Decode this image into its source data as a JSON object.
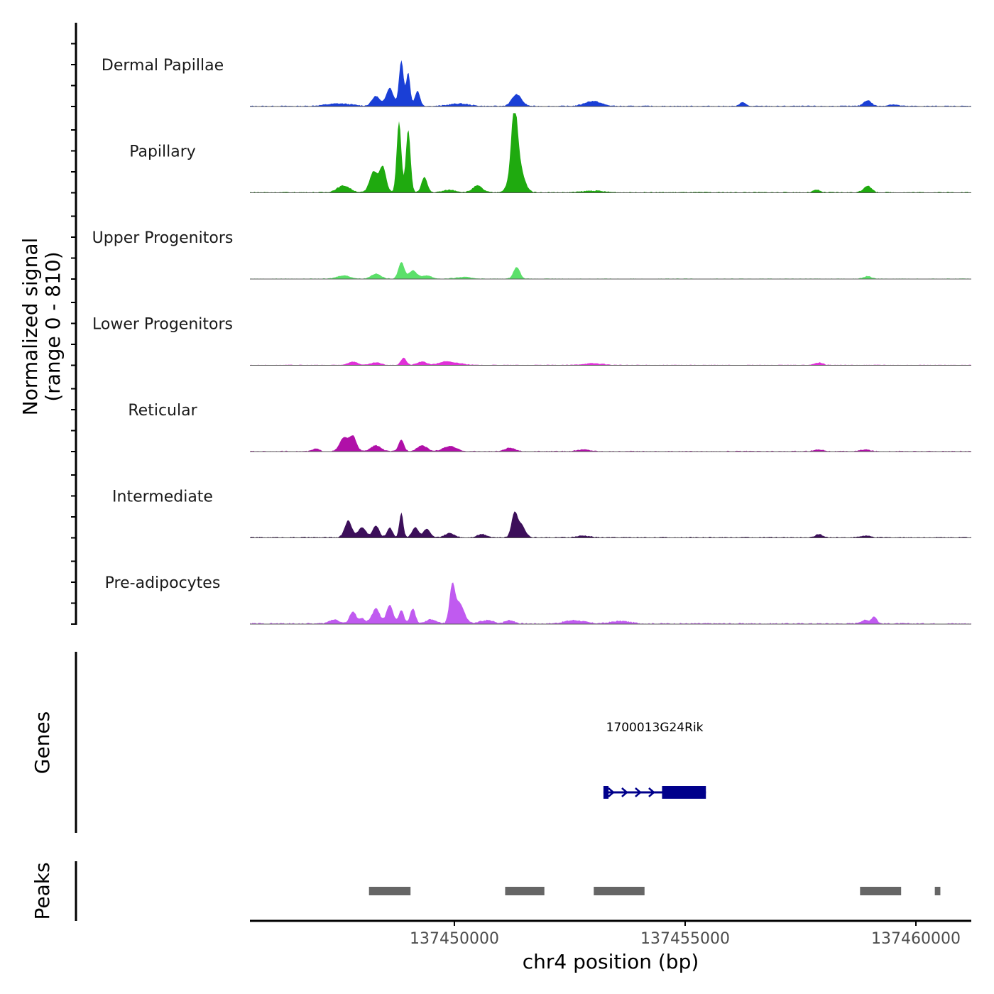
{
  "chart_data": {
    "type": "coverage-track",
    "region": {
      "chrom": "chr4",
      "start": 137445570,
      "end": 137461200
    },
    "y_title_line1": "Normalized signal",
    "y_title_line2": "(range 0 - 810)",
    "xlabel": "chr4 position (bp)",
    "x_ticks": [
      137450000,
      137455000,
      137460000
    ],
    "x_tick_labels": [
      "137450000",
      "137455000",
      "137460000"
    ],
    "tracks": [
      {
        "name": "Dermal Papillae",
        "color": "#1a3fd6",
        "peaks": [
          [
            137447500,
            0.03,
            400
          ],
          [
            137448300,
            0.12,
            120
          ],
          [
            137448600,
            0.22,
            110
          ],
          [
            137448850,
            0.55,
            70
          ],
          [
            137449000,
            0.4,
            60
          ],
          [
            137449200,
            0.18,
            80
          ],
          [
            137450100,
            0.03,
            300
          ],
          [
            137451350,
            0.14,
            150
          ],
          [
            137453000,
            0.06,
            250
          ],
          [
            137456250,
            0.05,
            80
          ],
          [
            137458950,
            0.07,
            120
          ],
          [
            137459500,
            0.02,
            150
          ]
        ],
        "noise": 0.012
      },
      {
        "name": "Papillary",
        "color": "#1faa0f",
        "peaks": [
          [
            137447600,
            0.08,
            200
          ],
          [
            137448250,
            0.25,
            120
          ],
          [
            137448450,
            0.3,
            100
          ],
          [
            137448800,
            0.85,
            70
          ],
          [
            137449000,
            0.75,
            70
          ],
          [
            137449350,
            0.18,
            90
          ],
          [
            137449900,
            0.03,
            200
          ],
          [
            137450500,
            0.08,
            150
          ],
          [
            137451300,
            0.7,
            90
          ],
          [
            137451350,
            0.4,
            180
          ],
          [
            137453000,
            0.02,
            300
          ],
          [
            137457850,
            0.03,
            100
          ],
          [
            137458950,
            0.08,
            120
          ]
        ],
        "noise": 0.012
      },
      {
        "name": "Upper Progenitors",
        "color": "#5ce06a",
        "peaks": [
          [
            137447600,
            0.04,
            200
          ],
          [
            137448300,
            0.06,
            150
          ],
          [
            137448850,
            0.2,
            90
          ],
          [
            137449100,
            0.1,
            120
          ],
          [
            137449400,
            0.04,
            150
          ],
          [
            137450200,
            0.02,
            250
          ],
          [
            137451350,
            0.14,
            100
          ],
          [
            137458950,
            0.03,
            120
          ]
        ],
        "noise": 0.008
      },
      {
        "name": "Lower Progenitors",
        "color": "#e030d8",
        "peaks": [
          [
            137447800,
            0.04,
            150
          ],
          [
            137448300,
            0.03,
            150
          ],
          [
            137448900,
            0.09,
            80
          ],
          [
            137449300,
            0.04,
            150
          ],
          [
            137449800,
            0.04,
            200
          ],
          [
            137450100,
            0.02,
            200
          ],
          [
            137453000,
            0.02,
            300
          ],
          [
            137457900,
            0.03,
            120
          ]
        ],
        "noise": 0.008
      },
      {
        "name": "Reticular",
        "color": "#b010a8",
        "peaks": [
          [
            137447000,
            0.03,
            100
          ],
          [
            137447600,
            0.16,
            120
          ],
          [
            137447800,
            0.18,
            110
          ],
          [
            137448300,
            0.07,
            150
          ],
          [
            137448850,
            0.14,
            80
          ],
          [
            137449300,
            0.07,
            150
          ],
          [
            137449900,
            0.06,
            200
          ],
          [
            137451200,
            0.04,
            150
          ],
          [
            137452800,
            0.02,
            200
          ],
          [
            137457900,
            0.02,
            150
          ],
          [
            137458900,
            0.02,
            150
          ]
        ],
        "noise": 0.01
      },
      {
        "name": "Intermediate",
        "color": "#3c0f5a",
        "peaks": [
          [
            137447700,
            0.2,
            110
          ],
          [
            137448000,
            0.12,
            120
          ],
          [
            137448300,
            0.14,
            100
          ],
          [
            137448600,
            0.12,
            80
          ],
          [
            137448850,
            0.3,
            60
          ],
          [
            137449150,
            0.12,
            100
          ],
          [
            137449400,
            0.1,
            100
          ],
          [
            137449900,
            0.05,
            150
          ],
          [
            137450600,
            0.04,
            150
          ],
          [
            137451300,
            0.28,
            90
          ],
          [
            137451450,
            0.15,
            120
          ],
          [
            137452800,
            0.02,
            200
          ],
          [
            137457900,
            0.04,
            100
          ],
          [
            137458900,
            0.02,
            150
          ]
        ],
        "noise": 0.012
      },
      {
        "name": "Pre-adipocytes",
        "color": "#c05af0",
        "peaks": [
          [
            137447400,
            0.05,
            150
          ],
          [
            137447800,
            0.14,
            100
          ],
          [
            137448000,
            0.06,
            100
          ],
          [
            137448300,
            0.18,
            120
          ],
          [
            137448600,
            0.22,
            100
          ],
          [
            137448850,
            0.16,
            80
          ],
          [
            137449100,
            0.18,
            80
          ],
          [
            137449500,
            0.05,
            150
          ],
          [
            137449950,
            0.4,
            80
          ],
          [
            137450100,
            0.25,
            150
          ],
          [
            137450700,
            0.04,
            200
          ],
          [
            137451200,
            0.04,
            150
          ],
          [
            137452600,
            0.04,
            300
          ],
          [
            137453600,
            0.03,
            300
          ],
          [
            137458900,
            0.04,
            150
          ],
          [
            137459100,
            0.08,
            80
          ]
        ],
        "noise": 0.015
      }
    ],
    "genes": [
      {
        "name": "1700013G24Rik",
        "strand": "+",
        "start": 137453230,
        "end": 137455450,
        "exons": [
          [
            137453230,
            137453340
          ],
          [
            137454500,
            137455450
          ]
        ]
      }
    ],
    "peak_regions": [
      [
        137448150,
        137449050
      ],
      [
        137451100,
        137451950
      ],
      [
        137453020,
        137454120
      ],
      [
        137458790,
        137459680
      ],
      [
        137460410,
        137460530
      ]
    ],
    "panel_titles": {
      "genes": "Genes",
      "peaks": "Peaks"
    }
  }
}
